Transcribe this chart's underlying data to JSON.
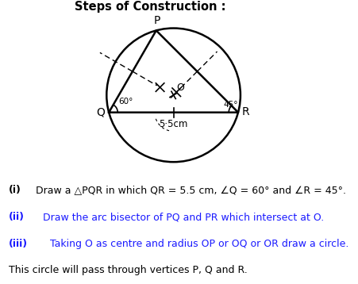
{
  "title": "Steps of Construction :",
  "title_fontsize": 10.5,
  "bg_color": "#ffffff",
  "text_color": "#000000",
  "blue_color": "#1a1aff",
  "Q": [
    0.0,
    0.0
  ],
  "R": [
    5.5,
    0.0
  ],
  "angleQ_deg": 60,
  "angleR_deg": 45,
  "label_55cm": "5·5cm",
  "instructions": [
    [
      "(i)",
      " Draw a △PQR in which QR = 5.5 cm, ∠Q = 60° and ∠R = 45°.",
      false
    ],
    [
      "(ii)",
      " Draw the arc bisector of PQ and PR which intersect at O.",
      true
    ],
    [
      "(iii)",
      " Taking O as centre and radius OP or OQ or OR draw a circle.",
      true
    ],
    [
      "",
      "This circle will pass through vertices P, Q and R.",
      false
    ]
  ]
}
